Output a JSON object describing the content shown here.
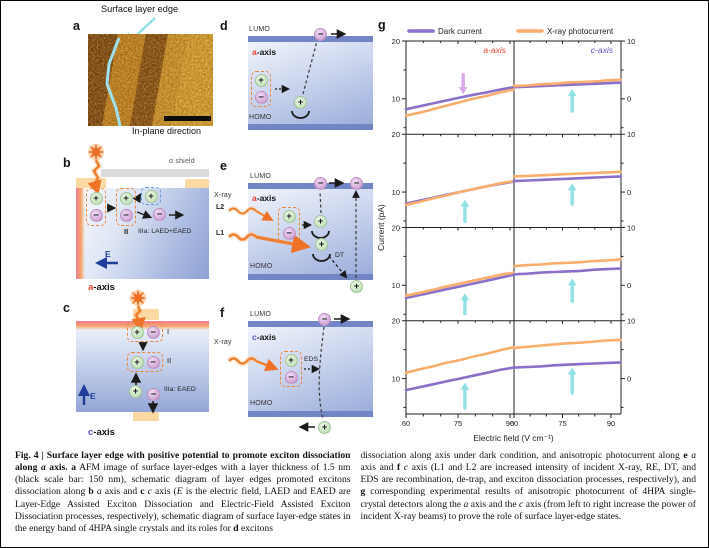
{
  "panels": {
    "a": {
      "label": "a",
      "title": "Surface layer edge",
      "direction_label": "In-plane direction"
    },
    "b": {
      "label": "b",
      "shield": "α shield",
      "stage_II": "II",
      "stage_III": "IIIa: LAED+EAED",
      "efield": "E",
      "axis": {
        "letter": "a",
        "rest": "-axis",
        "color": "#e8402c"
      }
    },
    "c": {
      "label": "c",
      "stage_I": "I",
      "stage_II": "II",
      "stage_III": "IIIa: EAED",
      "efield": "E",
      "axis": {
        "letter": "c",
        "rest": "-axis",
        "color": "#5b4fc8"
      }
    },
    "d": {
      "label": "d",
      "lumo": "LUMO",
      "homo": "HOMO",
      "axis": {
        "letter": "a",
        "rest": "-axis",
        "color": "#e8402c"
      }
    },
    "e": {
      "label": "e",
      "lumo": "LUMO",
      "homo": "HOMO",
      "axis": {
        "letter": "a",
        "rest": "-axis",
        "color": "#e8402c"
      },
      "xray": "X-ray",
      "l2": "L2",
      "l1": "L1",
      "dt": "DT"
    },
    "f": {
      "label": "f",
      "lumo": "LUMO",
      "homo": "HOMO",
      "axis": {
        "letter": "c",
        "rest": "-axis",
        "color": "#5b4fc8"
      },
      "xray": "X-ray",
      "eds": "EDS"
    },
    "g": {
      "label": "g"
    }
  },
  "symbols": {
    "plus": "+",
    "minus": "−"
  },
  "chart_data": {
    "type": "line",
    "grid": "4 rows x 2 columns; rows top to bottom = increasing incident X-ray power; left column a-axis, right column c-axis",
    "legend": [
      {
        "label": "Dark current",
        "color": "#8a70c8"
      },
      {
        "label": "X-ray photocurrent",
        "color": "#f9ae6e"
      }
    ],
    "legend_position": "top",
    "x_label": "Electric field (V cm⁻¹)",
    "y_label": "Current (pA)",
    "x_ticks": [
      60,
      75,
      90
    ],
    "x_minor_ticks": [
      65,
      70,
      80,
      85
    ],
    "y_ticks_left": [
      20,
      10
    ],
    "y_ticks_right": [
      10,
      0
    ],
    "column_labels": [
      {
        "label": "a-axis",
        "color": "#e8402c"
      },
      {
        "label": "c-axis",
        "color": "#5b4fc8"
      }
    ],
    "x_a": [
      60,
      63.9,
      67.8,
      71.6,
      75.5,
      79.4,
      83.3,
      87.1,
      91
    ],
    "x_c": [
      60,
      64.1,
      68.3,
      72.4,
      76.5,
      80.6,
      84.8,
      88.9,
      93
    ],
    "rows": [
      {
        "a_axis": {
          "dark": [
            8.2,
            8.7,
            9.2,
            9.7,
            10.2,
            10.7,
            11.1,
            11.6,
            12.0
          ],
          "xray": [
            7.1,
            7.6,
            8.2,
            8.8,
            9.4,
            10.0,
            10.5,
            11.1,
            11.6
          ]
        },
        "c_axis": {
          "dark": [
            12.0,
            12.1,
            12.2,
            12.3,
            12.4,
            12.5,
            12.6,
            12.7,
            12.8
          ],
          "xray": [
            12.2,
            12.3,
            12.5,
            12.6,
            12.8,
            12.9,
            13.0,
            13.2,
            13.3
          ]
        }
      },
      {
        "a_axis": {
          "dark": [
            8.0,
            8.5,
            9.0,
            9.5,
            10.0,
            10.5,
            11.0,
            11.4,
            11.8
          ],
          "xray": [
            7.8,
            8.3,
            8.9,
            9.4,
            10.0,
            10.5,
            11.0,
            11.5,
            11.9
          ]
        },
        "c_axis": {
          "dark": [
            11.9,
            12.0,
            12.1,
            12.2,
            12.3,
            12.4,
            12.5,
            12.6,
            12.7
          ],
          "xray": [
            12.7,
            12.8,
            12.9,
            13.0,
            13.1,
            13.2,
            13.3,
            13.4,
            13.5
          ]
        }
      },
      {
        "a_axis": {
          "dark": [
            7.8,
            8.3,
            8.8,
            9.3,
            9.8,
            10.3,
            10.8,
            11.3,
            11.8
          ],
          "xray": [
            8.2,
            8.7,
            9.2,
            9.8,
            10.3,
            10.8,
            11.3,
            11.8,
            12.2
          ]
        },
        "c_axis": {
          "dark": [
            11.9,
            12.0,
            12.2,
            12.3,
            12.4,
            12.5,
            12.7,
            12.8,
            12.9
          ],
          "xray": [
            13.3,
            13.5,
            13.6,
            13.8,
            13.9,
            14.0,
            14.2,
            14.3,
            14.5
          ]
        }
      },
      {
        "a_axis": {
          "dark": [
            8.0,
            8.5,
            9.0,
            9.5,
            10.0,
            10.5,
            11.0,
            11.5,
            11.9
          ],
          "xray": [
            11.0,
            11.6,
            12.1,
            12.7,
            13.2,
            13.8,
            14.3,
            14.9,
            15.4
          ]
        },
        "c_axis": {
          "dark": [
            11.9,
            12.0,
            12.1,
            12.3,
            12.4,
            12.5,
            12.6,
            12.7,
            12.8
          ],
          "xray": [
            15.3,
            15.5,
            15.7,
            15.9,
            16.1,
            16.2,
            16.4,
            16.6,
            16.7
          ]
        }
      }
    ],
    "annotation_arrows": [
      {
        "row": 0,
        "col": 0,
        "x": 76.5,
        "from": 14.2,
        "to": 10.8,
        "direction": "down",
        "color": "#d9a6e8"
      },
      {
        "row": 0,
        "col": 1,
        "x": 78,
        "from": 7.9,
        "to": 11.7,
        "direction": "up",
        "color": "#8ce0e4"
      },
      {
        "row": 1,
        "col": 0,
        "x": 77,
        "from": 4.9,
        "to": 8.7,
        "direction": "up",
        "color": "#8ce0e4"
      },
      {
        "row": 1,
        "col": 1,
        "x": 78,
        "from": 7.9,
        "to": 11.5,
        "direction": "up",
        "color": "#8ce0e4"
      },
      {
        "row": 2,
        "col": 0,
        "x": 77,
        "from": 5.1,
        "to": 8.6,
        "direction": "up",
        "color": "#8ce0e4"
      },
      {
        "row": 2,
        "col": 1,
        "x": 78,
        "from": 7.2,
        "to": 11.2,
        "direction": "up",
        "color": "#8ce0e4"
      },
      {
        "row": 3,
        "col": 0,
        "x": 77,
        "from": 4.9,
        "to": 9.3,
        "direction": "up",
        "color": "#8ce0e4"
      },
      {
        "row": 3,
        "col": 1,
        "x": 78,
        "from": 7.5,
        "to": 11.9,
        "direction": "up",
        "color": "#8ce0e4"
      }
    ]
  },
  "caption": {
    "left": [
      {
        "t": "Fig. 4 | Surface layer edge with positive potential to promote exciton dissociation along ",
        "b": 1
      },
      {
        "t": "a",
        "b": 1,
        "i": 1
      },
      {
        "t": " axis.",
        "b": 1
      },
      {
        "t": " "
      },
      {
        "t": "a",
        "b": 1
      },
      {
        "t": " AFM image of surface layer-edges with a layer thickness of 1.5 nm (black scale bar: 150 nm), schematic diagram of layer edges promoted excitons dissociation along "
      },
      {
        "t": "b",
        "b": 1
      },
      {
        "t": " "
      },
      {
        "t": "a",
        "i": 1
      },
      {
        "t": " axis and "
      },
      {
        "t": "c",
        "b": 1
      },
      {
        "t": " "
      },
      {
        "t": "c",
        "i": 1
      },
      {
        "t": " axis ("
      },
      {
        "t": "E",
        "i": 1
      },
      {
        "t": " is the electric field, LAED and EAED are Layer-Edge Assisted Exciton Dissociation and Electric-Field Assisted Exciton Dissociation processes, respectively), schematic diagram of surface layer-edge states in the energy band of 4HPA single crystals and its roles for "
      },
      {
        "t": "d",
        "b": 1
      },
      {
        "t": " excitons"
      }
    ],
    "right": [
      {
        "t": "dissociation along axis under dark condition, and anisotropic photocurrent along "
      },
      {
        "t": "e",
        "b": 1
      },
      {
        "t": " "
      },
      {
        "t": "a",
        "i": 1
      },
      {
        "t": " axis and "
      },
      {
        "t": "f",
        "b": 1
      },
      {
        "t": " "
      },
      {
        "t": "c",
        "i": 1
      },
      {
        "t": " axis (L1 and L2 are increased intensity of incident X-ray, RE, DT, and EDS are recombination, de-trap, and exciton dissociation processes, respectively), and "
      },
      {
        "t": "g",
        "b": 1
      },
      {
        "t": " corresponding experimental results of anisotropic photocurrent of 4HPA single-crystal detectors along the "
      },
      {
        "t": "a",
        "i": 1
      },
      {
        "t": " axis and the "
      },
      {
        "t": "c",
        "i": 1
      },
      {
        "t": " axis (from left to right increase the power of incident X-ray beams) to prove the role of surface layer-edge states."
      }
    ]
  }
}
